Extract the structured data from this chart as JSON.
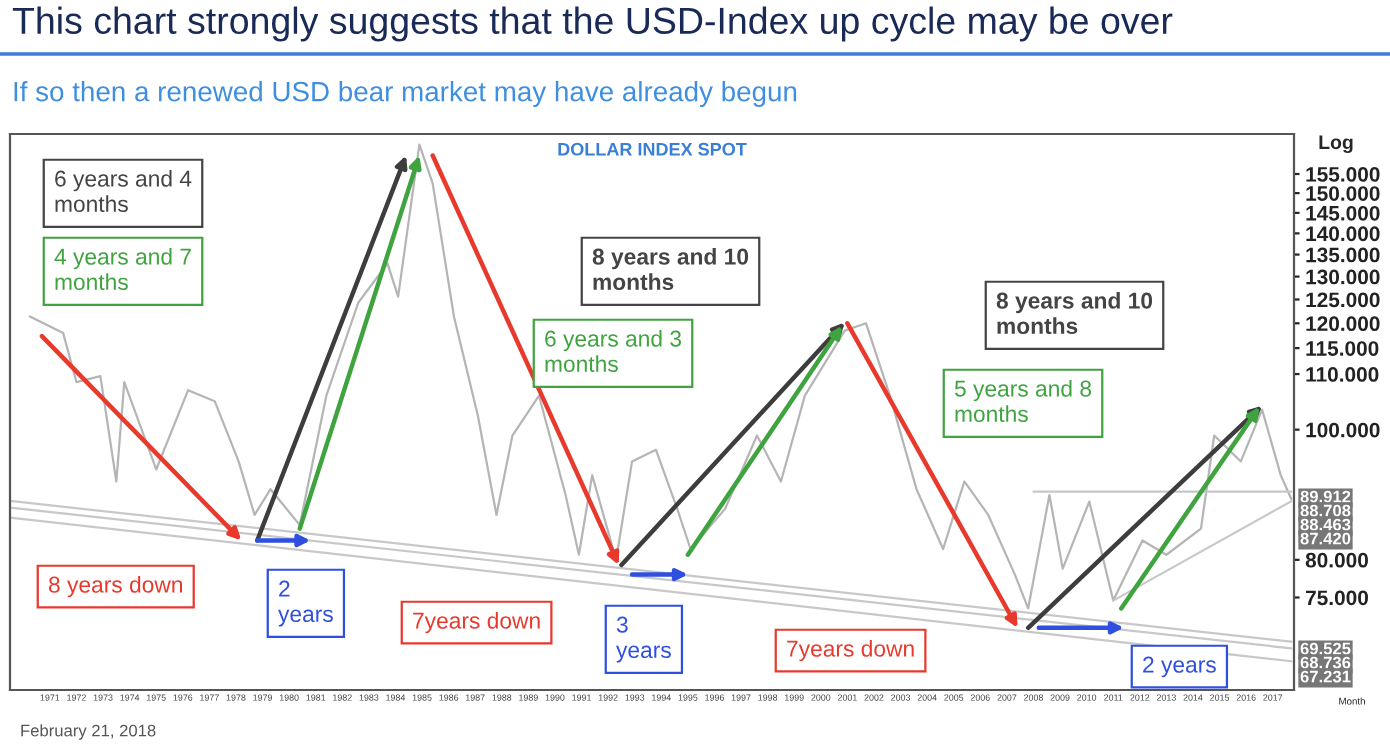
{
  "chart_data": {
    "type": "line",
    "title": "DOLLAR INDEX SPOT",
    "annotations": [
      "This chart strongly suggests that the USD-Index up cycle may be over",
      "If so then a renewed USD bear market may have already begun",
      "6 years and 4\nmonths",
      "4 years and 7\nmonths",
      "8 years and 10\nmonths",
      "6 years and 3\nmonths",
      "8 years and 10\nmonths",
      "5 years and 8\nmonths",
      "8 years down",
      "2\nyears",
      "7years down",
      "3\nyears",
      "7years down",
      "2 years",
      "89.912",
      "88.708",
      "88.463",
      "87.420",
      "69.525",
      "68.736",
      "67.231",
      "February 21, 2018"
    ],
    "ylabel": "Log",
    "xlabel": "Month",
    "log": true,
    "grid": false,
    "legend": false,
    "xlim": [
      1970.0,
      2018.3
    ],
    "ylim": [
      64,
      166
    ],
    "yticks": [
      {
        "value": 75,
        "label": "75.000"
      },
      {
        "value": 80,
        "label": "80.000"
      },
      {
        "value": 100,
        "label": "100.000"
      },
      {
        "value": 110,
        "label": "110.000"
      },
      {
        "value": 115,
        "label": "115.000"
      },
      {
        "value": 120,
        "label": "120.000"
      },
      {
        "value": 125,
        "label": "125.000"
      },
      {
        "value": 130,
        "label": "130.000"
      },
      {
        "value": 135,
        "label": "135.000"
      },
      {
        "value": 140,
        "label": "140.000"
      },
      {
        "value": 145,
        "label": "145.000"
      },
      {
        "value": 150,
        "label": "150.000"
      },
      {
        "value": 155,
        "label": "155.000"
      }
    ],
    "xticks": [
      {
        "value": 1971.5,
        "label": "1971"
      },
      {
        "value": 1972.5,
        "label": "1972"
      },
      {
        "value": 1973.5,
        "label": "1973"
      },
      {
        "value": 1974.5,
        "label": "1974"
      },
      {
        "value": 1975.5,
        "label": "1975"
      },
      {
        "value": 1976.5,
        "label": "1976"
      },
      {
        "value": 1977.5,
        "label": "1977"
      },
      {
        "value": 1978.5,
        "label": "1978"
      },
      {
        "value": 1979.5,
        "label": "1979"
      },
      {
        "value": 1980.5,
        "label": "1980"
      },
      {
        "value": 1981.5,
        "label": "1981"
      },
      {
        "value": 1982.5,
        "label": "1982"
      },
      {
        "value": 1983.5,
        "label": "1983"
      },
      {
        "value": 1984.5,
        "label": "1984"
      },
      {
        "value": 1985.5,
        "label": "1985"
      },
      {
        "value": 1986.5,
        "label": "1986"
      },
      {
        "value": 1987.5,
        "label": "1987"
      },
      {
        "value": 1988.5,
        "label": "1988"
      },
      {
        "value": 1989.5,
        "label": "1989"
      },
      {
        "value": 1990.5,
        "label": "1990"
      },
      {
        "value": 1991.5,
        "label": "1991"
      },
      {
        "value": 1992.5,
        "label": "1992"
      },
      {
        "value": 1993.5,
        "label": "1993"
      },
      {
        "value": 1994.5,
        "label": "1994"
      },
      {
        "value": 1995.5,
        "label": "1995"
      },
      {
        "value": 1996.5,
        "label": "1996"
      },
      {
        "value": 1997.5,
        "label": "1997"
      },
      {
        "value": 1998.5,
        "label": "1998"
      },
      {
        "value": 1999.5,
        "label": "1999"
      },
      {
        "value": 2000.5,
        "label": "2000"
      },
      {
        "value": 2001.5,
        "label": "2001"
      },
      {
        "value": 2002.5,
        "label": "2002"
      },
      {
        "value": 2003.5,
        "label": "2003"
      },
      {
        "value": 2004.5,
        "label": "2004"
      },
      {
        "value": 2005.5,
        "label": "2005"
      },
      {
        "value": 2006.5,
        "label": "2006"
      },
      {
        "value": 2007.5,
        "label": "2007"
      },
      {
        "value": 2008.5,
        "label": "2008"
      },
      {
        "value": 2009.5,
        "label": "2009"
      },
      {
        "value": 2010.5,
        "label": "2010"
      },
      {
        "value": 2011.5,
        "label": "2011"
      },
      {
        "value": 2012.5,
        "label": "2012"
      },
      {
        "value": 2013.5,
        "label": "2013"
      },
      {
        "value": 2014.5,
        "label": "2014"
      },
      {
        "value": 2015.5,
        "label": "2015"
      },
      {
        "value": 2016.5,
        "label": "2016"
      },
      {
        "value": 2017.5,
        "label": "2017"
      }
    ],
    "series": [
      {
        "color": "#b5b5b5",
        "x": [
          1970.75,
          1972.0,
          1972.5,
          1973.4,
          1974.0,
          1974.3,
          1975.5,
          1976.7,
          1977.7,
          1978.6,
          1979.2,
          1979.8,
          1980.9,
          1981.9,
          1983.1,
          1984.2,
          1984.6,
          1985.4,
          1985.9,
          1986.7,
          1987.6,
          1988.3,
          1988.9,
          1989.9,
          1990.9,
          1991.4,
          1991.9,
          1992.8,
          1993.4,
          1994.3,
          1995.1,
          1995.6,
          1996.9,
          1998.1,
          1999.0,
          1999.9,
          2001.4,
          2002.2,
          2003.1,
          2004.1,
          2005.1,
          2005.9,
          2006.8,
          2007.8,
          2008.3,
          2009.1,
          2009.6,
          2010.6,
          2011.5,
          2012.6,
          2013.5,
          2014.8,
          2015.3,
          2016.3,
          2017.1,
          2017.8,
          2018.2
        ],
        "values": [
          121.4,
          118,
          108.5,
          109.6,
          91.5,
          108.5,
          93.4,
          107,
          105,
          94.7,
          86.4,
          90.3,
          84.9,
          106,
          124.3,
          133,
          125.6,
          163,
          152.5,
          121.4,
          102.4,
          86.4,
          99,
          106,
          89.4,
          80.7,
          92.5,
          80,
          94.7,
          96.6,
          87.3,
          81.5,
          87.3,
          99,
          91.5,
          106,
          118.5,
          120,
          106,
          90.3,
          81.5,
          91.5,
          86.4,
          78,
          73.6,
          89.4,
          78.8,
          88.4,
          74.6,
          82.7,
          80.7,
          84.4,
          99,
          94.7,
          103.5,
          92.5,
          88.8
        ]
      },
      {
        "color": "#c8c8c8",
        "x": [
          1970.0,
          2018.2
        ],
        "values": [
          88.5,
          69.525
        ]
      },
      {
        "color": "#c8c8c8",
        "x": [
          1970.0,
          2018.2
        ],
        "values": [
          87.5,
          68.736
        ]
      },
      {
        "color": "#c8c8c8",
        "x": [
          1970.0,
          2018.2
        ],
        "values": [
          86.0,
          67.231
        ]
      },
      {
        "color": "#c8c8c8",
        "x": [
          2008.5,
          2018.2
        ],
        "values": [
          89.912,
          89.912
        ]
      },
      {
        "color": "#c8c8c8",
        "x": [
          2011.5,
          2018.2
        ],
        "values": [
          74.6,
          88.463
        ]
      }
    ]
  }
}
